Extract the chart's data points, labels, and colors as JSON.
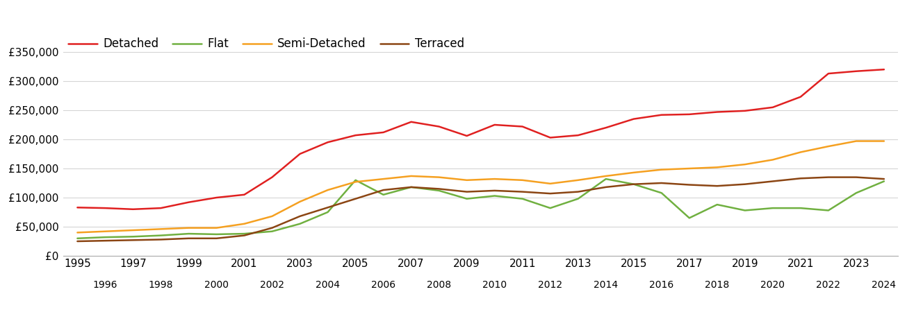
{
  "series": {
    "Detached": {
      "color": "#e02020",
      "years": [
        1995,
        1996,
        1997,
        1998,
        1999,
        2000,
        2001,
        2002,
        2003,
        2004,
        2005,
        2006,
        2007,
        2008,
        2009,
        2010,
        2011,
        2012,
        2013,
        2014,
        2015,
        2016,
        2017,
        2018,
        2019,
        2020,
        2021,
        2022,
        2023,
        2024
      ],
      "values": [
        83000,
        82000,
        80000,
        82000,
        92000,
        100000,
        105000,
        135000,
        175000,
        195000,
        207000,
        212000,
        230000,
        222000,
        206000,
        225000,
        222000,
        203000,
        207000,
        220000,
        235000,
        242000,
        243000,
        247000,
        249000,
        255000,
        273000,
        313000,
        317000,
        320000
      ]
    },
    "Flat": {
      "color": "#70b040",
      "years": [
        1995,
        1996,
        1997,
        1998,
        1999,
        2000,
        2001,
        2002,
        2003,
        2004,
        2005,
        2006,
        2007,
        2008,
        2009,
        2010,
        2011,
        2012,
        2013,
        2014,
        2015,
        2016,
        2017,
        2018,
        2019,
        2020,
        2021,
        2022,
        2023,
        2024
      ],
      "values": [
        30000,
        32000,
        33000,
        35000,
        38000,
        37000,
        38000,
        42000,
        55000,
        75000,
        130000,
        105000,
        118000,
        112000,
        98000,
        103000,
        98000,
        82000,
        98000,
        132000,
        123000,
        108000,
        65000,
        88000,
        78000,
        82000,
        82000,
        78000,
        108000,
        128000
      ]
    },
    "Semi-Detached": {
      "color": "#f5a020",
      "years": [
        1995,
        1996,
        1997,
        1998,
        1999,
        2000,
        2001,
        2002,
        2003,
        2004,
        2005,
        2006,
        2007,
        2008,
        2009,
        2010,
        2011,
        2012,
        2013,
        2014,
        2015,
        2016,
        2017,
        2018,
        2019,
        2020,
        2021,
        2022,
        2023,
        2024
      ],
      "values": [
        40000,
        42000,
        44000,
        46000,
        48000,
        48000,
        55000,
        68000,
        93000,
        113000,
        127000,
        132000,
        137000,
        135000,
        130000,
        132000,
        130000,
        124000,
        130000,
        137000,
        143000,
        148000,
        150000,
        152000,
        157000,
        165000,
        178000,
        188000,
        197000,
        197000
      ]
    },
    "Terraced": {
      "color": "#8b4513",
      "years": [
        1995,
        1996,
        1997,
        1998,
        1999,
        2000,
        2001,
        2002,
        2003,
        2004,
        2005,
        2006,
        2007,
        2008,
        2009,
        2010,
        2011,
        2012,
        2013,
        2014,
        2015,
        2016,
        2017,
        2018,
        2019,
        2020,
        2021,
        2022,
        2023,
        2024
      ],
      "values": [
        25000,
        26000,
        27000,
        28000,
        30000,
        30000,
        35000,
        48000,
        68000,
        83000,
        98000,
        113000,
        118000,
        115000,
        110000,
        112000,
        110000,
        107000,
        110000,
        118000,
        123000,
        125000,
        122000,
        120000,
        123000,
        128000,
        133000,
        135000,
        135000,
        132000
      ]
    }
  },
  "ylim": [
    0,
    375000
  ],
  "yticks": [
    0,
    50000,
    100000,
    150000,
    200000,
    250000,
    300000,
    350000
  ],
  "xlim": [
    1994.5,
    2024.5
  ],
  "xticks_top": [
    1995,
    1997,
    1999,
    2001,
    2003,
    2005,
    2007,
    2009,
    2011,
    2013,
    2015,
    2017,
    2019,
    2021,
    2023
  ],
  "xticks_bottom": [
    1996,
    1998,
    2000,
    2002,
    2004,
    2006,
    2008,
    2010,
    2012,
    2014,
    2016,
    2018,
    2020,
    2022,
    2024
  ],
  "line_width": 1.8,
  "legend_fontsize": 12,
  "tick_fontsize": 11,
  "background_color": "#ffffff",
  "grid_color": "#d5d5d5"
}
